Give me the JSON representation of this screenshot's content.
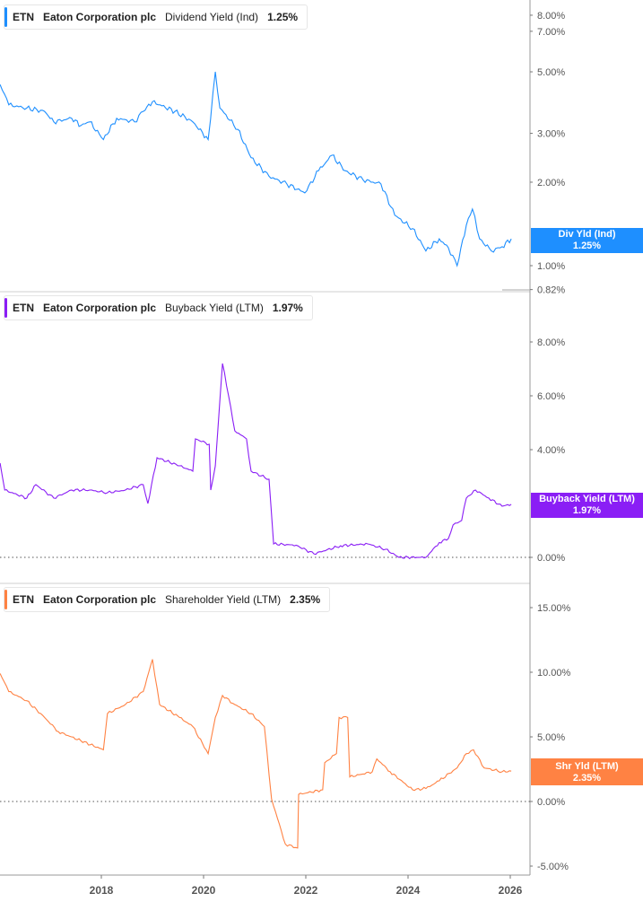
{
  "chart_data": [
    {
      "type": "line",
      "ticker": "ETN",
      "company": "Eaton Corporation plc",
      "metric": "Dividend Yield (Ind)",
      "last_value": "1.25%",
      "tag_label": "Div Yld (Ind)",
      "color": "#1e8fff",
      "y_scale": "log",
      "ylim": [
        0.82,
        8.6
      ],
      "y_ticks": [
        "8.00%",
        "7.00%",
        "5.00%",
        "3.00%",
        "2.00%",
        "1.00%",
        "0.82%"
      ],
      "y_tick_values": [
        8,
        7,
        5,
        3,
        2,
        1,
        0.82
      ],
      "x": [
        2016.02,
        2016.19,
        2016.54,
        2016.89,
        2017.07,
        2017.42,
        2017.6,
        2017.77,
        2018.04,
        2018.3,
        2018.65,
        2018.82,
        2019.0,
        2019.44,
        2019.79,
        2020.09,
        2020.23,
        2020.32,
        2020.67,
        2020.93,
        2021.28,
        2021.63,
        2021.98,
        2022.25,
        2022.51,
        2022.77,
        2023.12,
        2023.47,
        2023.74,
        2024.09,
        2024.35,
        2024.61,
        2024.79,
        2024.96,
        2025.14,
        2025.26,
        2025.4,
        2025.63,
        2025.84,
        2026.02
      ],
      "values": [
        4.5,
        3.8,
        3.7,
        3.6,
        3.3,
        3.4,
        3.2,
        3.3,
        2.85,
        3.4,
        3.3,
        3.6,
        3.9,
        3.6,
        3.3,
        2.85,
        5.0,
        3.7,
        3.1,
        2.45,
        2.1,
        1.97,
        1.83,
        2.2,
        2.5,
        2.2,
        2.04,
        1.97,
        1.52,
        1.36,
        1.13,
        1.25,
        1.16,
        1.0,
        1.4,
        1.6,
        1.25,
        1.13,
        1.17,
        1.25
      ]
    },
    {
      "type": "line",
      "ticker": "ETN",
      "company": "Eaton Corporation plc",
      "metric": "Buyback Yield (LTM)",
      "last_value": "1.97%",
      "tag_label": "Buyback Yield (LTM)",
      "color": "#8a1ef5",
      "y_scale": "linear",
      "ylim": [
        -0.9,
        10
      ],
      "y_ticks": [
        "8.00%",
        "6.00%",
        "4.00%",
        "0.00%"
      ],
      "y_tick_values": [
        8,
        6,
        4,
        0
      ],
      "x": [
        2016.02,
        2016.11,
        2016.54,
        2016.72,
        2017.07,
        2017.42,
        2017.77,
        2018.12,
        2018.47,
        2018.82,
        2018.91,
        2019.09,
        2019.53,
        2019.79,
        2019.84,
        2020.11,
        2020.14,
        2020.23,
        2020.37,
        2020.49,
        2020.61,
        2020.84,
        2020.93,
        2021.28,
        2021.37,
        2021.81,
        2022.16,
        2022.68,
        2023.21,
        2023.56,
        2023.82,
        2024.35,
        2024.61,
        2024.79,
        2024.88,
        2025.05,
        2025.14,
        2025.32,
        2025.58,
        2025.84,
        2026.02
      ],
      "values": [
        3.5,
        2.5,
        2.2,
        2.7,
        2.2,
        2.5,
        2.5,
        2.4,
        2.5,
        2.7,
        2.0,
        3.7,
        3.4,
        3.2,
        4.4,
        4.2,
        2.5,
        3.4,
        7.2,
        6.0,
        4.7,
        4.4,
        3.2,
        2.9,
        0.5,
        0.45,
        0.13,
        0.43,
        0.5,
        0.3,
        0.0,
        0.0,
        0.55,
        0.7,
        1.2,
        1.37,
        2.2,
        2.5,
        2.2,
        1.9,
        1.97
      ]
    },
    {
      "type": "line",
      "ticker": "ETN",
      "company": "Eaton Corporation plc",
      "metric": "Shareholder Yield (LTM)",
      "last_value": "2.35%",
      "tag_label": "Shr Yld (LTM)",
      "color": "#ff8243",
      "y_scale": "linear",
      "ylim": [
        -5,
        16.8
      ],
      "y_ticks": [
        "15.00%",
        "10.00%",
        "5.00%",
        "0.00%",
        "-5.00%"
      ],
      "y_tick_values": [
        15,
        10,
        5,
        0,
        -5
      ],
      "x": [
        2016.02,
        2016.19,
        2016.54,
        2016.89,
        2017.16,
        2017.6,
        2018.04,
        2018.12,
        2018.47,
        2018.82,
        2019.0,
        2019.14,
        2019.53,
        2019.79,
        2020.09,
        2020.23,
        2020.37,
        2020.61,
        2020.93,
        2021.19,
        2021.33,
        2021.6,
        2021.84,
        2021.86,
        2022.33,
        2022.37,
        2022.6,
        2022.65,
        2022.82,
        2022.86,
        2023.3,
        2023.39,
        2023.65,
        2024.09,
        2024.35,
        2024.61,
        2024.96,
        2025.14,
        2025.28,
        2025.49,
        2025.84,
        2026.02
      ],
      "values": [
        9.9,
        8.5,
        7.8,
        6.5,
        5.4,
        4.7,
        4.0,
        6.8,
        7.5,
        8.5,
        11.0,
        7.5,
        6.5,
        5.8,
        3.7,
        6.5,
        8.2,
        7.5,
        6.8,
        5.8,
        0.2,
        -3.3,
        -3.6,
        0.55,
        0.9,
        3.0,
        3.7,
        6.5,
        6.5,
        1.9,
        2.3,
        3.3,
        2.3,
        0.9,
        1.0,
        1.6,
        2.6,
        3.7,
        4.0,
        2.6,
        2.3,
        2.35
      ]
    }
  ],
  "x_axis": {
    "tick_labels": [
      "2018",
      "2020",
      "2022",
      "2024",
      "2026"
    ],
    "tick_values": [
      2018,
      2020,
      2022,
      2024,
      2026
    ],
    "xlim": [
      2016.0,
      2026.0
    ]
  }
}
